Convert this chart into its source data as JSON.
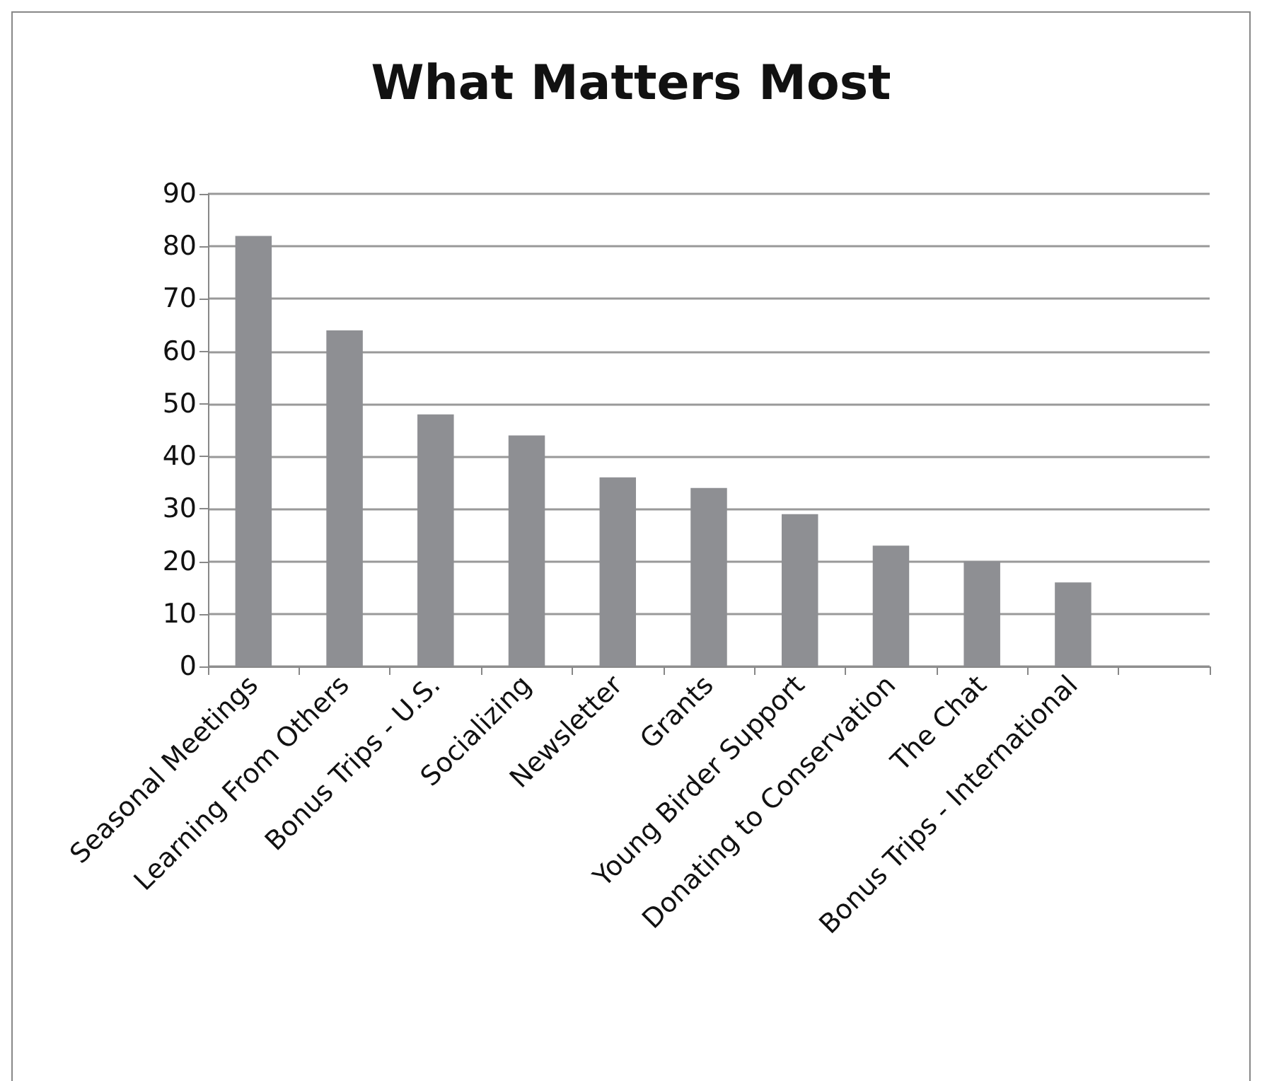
{
  "chart_data": {
    "type": "bar",
    "title": "What Matters Most",
    "categories": [
      "Seasonal Meetings",
      "Learning From Others",
      "Bonus Trips - U.S.",
      "Socializing",
      "Newsletter",
      "Grants",
      "Young Birder Support",
      "Donating to Conservation",
      "The Chat",
      "Bonus Trips - International",
      null
    ],
    "values": [
      82,
      64,
      48,
      44,
      36,
      34,
      29,
      23,
      20,
      16,
      null
    ],
    "color": "#8e8f93",
    "ylim": [
      0,
      90
    ],
    "yticks": [
      0,
      10,
      20,
      30,
      40,
      50,
      60,
      70,
      80,
      90
    ],
    "grid": "y"
  }
}
